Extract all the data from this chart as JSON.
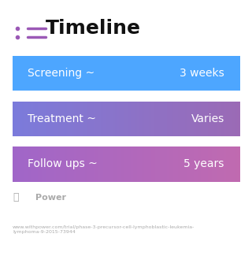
{
  "title": "Timeline",
  "background_color": "#ffffff",
  "rows": [
    {
      "label": "Screening ~",
      "value": "3 weeks",
      "color_left": "#4da6ff",
      "color_right": "#4da6ff"
    },
    {
      "label": "Treatment ~",
      "value": "Varies",
      "color_left": "#7b7bdb",
      "color_right": "#9b6ab5"
    },
    {
      "label": "Follow ups ~",
      "value": "5 years",
      "color_left": "#a066c8",
      "color_right": "#c06ab0"
    }
  ],
  "icon_color": "#9b59b6",
  "footer_logo_color": "#aaaaaa",
  "footer_text": "www.withpower.com/trial/phase-3-precursor-cell-lymphoblastic-leukemia-\nlymphoma-9-2015-73944",
  "footer_logo_text": "Power"
}
